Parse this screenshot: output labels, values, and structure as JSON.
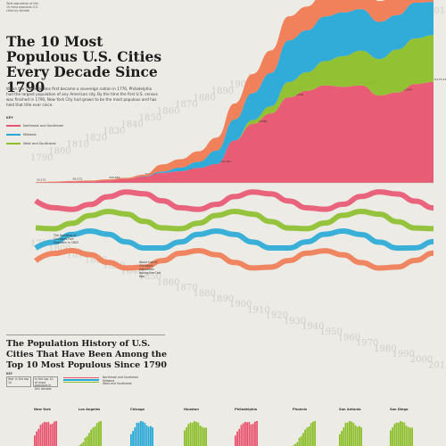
{
  "corner_note": "Total population of the 10 most populous U.S. cities by decade",
  "title": "The 10 Most Populous U.S. Cities Every Decade Since 1790",
  "intro": "When the United States first became a sovereign nation in 1776, Philadelphia had the largest population of any American city. By the time the first U.S. census was finished in 1790, New York City had grown to be the most populous and has held that title ever since.",
  "legend": {
    "title": "KEY",
    "items": [
      {
        "label": "Northeast and Southeast",
        "color": "#e8546f"
      },
      {
        "label": "Midwest",
        "color": "#27a8d6"
      },
      {
        "label": "West and Southwest",
        "color": "#8dbf2a"
      }
    ]
  },
  "notes": [
    "The founding of Chicago's Fort Dearborn in 1803",
    "About half of Chicago's population during the Civil War"
  ],
  "subtitle": "The Population History of U.S. Cities That Have Been Among the Top 10 Most Populous Since 1790",
  "key2": {
    "title": "KEY",
    "a": "Year in the top 10",
    "b": "In the top 10 of most populous in this decade",
    "regions": [
      "Northeast and Southeast",
      "Midwest",
      "West and Southwest"
    ]
  },
  "bottom_cities": [
    "New York",
    "Los Angeles",
    "Chicago",
    "Houston",
    "Philadelphia",
    "Phoenix",
    "San Antonio",
    "San Diego"
  ],
  "chart_data": {
    "type": "area",
    "title": "The 10 Most Populous U.S. Cities Every Decade Since 1790",
    "x": [
      "1790",
      "1800",
      "1810",
      "1820",
      "1830",
      "1840",
      "1850",
      "1860",
      "1870",
      "1880",
      "1890",
      "1900",
      "1910",
      "1920",
      "1930",
      "1940",
      "1950",
      "1960",
      "1970",
      "1980",
      "1990",
      "2000",
      "2010"
    ],
    "series": [
      {
        "name": "New York",
        "region": "Northeast and Southeast",
        "color": "#e8546f",
        "values": [
          33131,
          60515,
          96373,
          123706,
          202589,
          312710,
          515547,
          813669,
          942292,
          1206299,
          1515301,
          3437202,
          4766883,
          5620048,
          6930446,
          7454995,
          7891957,
          7781984,
          7894862,
          7071639,
          7322564,
          8008278,
          8175133
        ]
      },
      {
        "name": "Los Angeles",
        "region": "West and Southwest",
        "color": "#8dbf2a",
        "values": [
          0,
          0,
          0,
          0,
          0,
          0,
          0,
          0,
          0,
          0,
          0,
          0,
          319198,
          576673,
          1238048,
          1504277,
          1970358,
          2479015,
          2816061,
          2966850,
          3485398,
          3694820,
          3792621
        ]
      },
      {
        "name": "Chicago",
        "region": "Midwest",
        "color": "#27a8d6",
        "values": [
          0,
          0,
          0,
          0,
          0,
          0,
          29963,
          112172,
          298977,
          503185,
          1099850,
          1698575,
          2185283,
          2701705,
          3376438,
          3396808,
          3620962,
          3550404,
          3366957,
          3005072,
          2783726,
          2896016,
          2695598
        ]
      },
      {
        "name": "Philadelphia",
        "region": "Northeast and Southeast",
        "color": "#f07b52",
        "values": [
          28522,
          41220,
          53722,
          63802,
          80462,
          93665,
          121376,
          565529,
          674022,
          847170,
          1046964,
          1293697,
          1549008,
          1823779,
          1950961,
          1931334,
          2071605,
          2002512,
          1948609,
          1688210,
          1585577,
          1517550,
          1526006
        ]
      }
    ]
  }
}
